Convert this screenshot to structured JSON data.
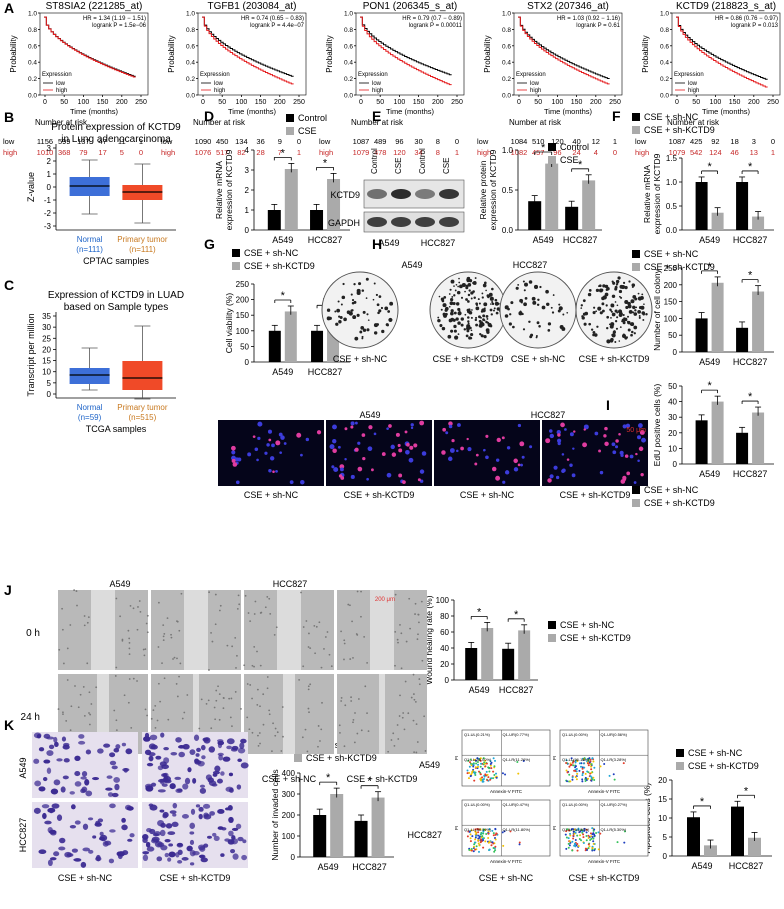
{
  "panel_letters": [
    "A",
    "B",
    "C",
    "D",
    "E",
    "F",
    "G",
    "H",
    "I",
    "J",
    "K",
    "L"
  ],
  "colors": {
    "low": "#000000",
    "high": "#e41a1c",
    "control": "#000000",
    "cse": "#aaaaaa",
    "sh_nc": "#000000",
    "sh_kctd9": "#aaaaaa",
    "box_normal": "#3d6fd8",
    "box_tumor": "#f04a28",
    "high_text": "#c62828",
    "normal_text": "#1e64c8",
    "tumor_text": "#c8781e"
  },
  "km": [
    {
      "title": "ST8SIA2 (221285_at)",
      "hr": "HR = 1.34 (1.19 − 1.51)",
      "logrank": "logrank P = 1.5e−06",
      "low": [
        "1156",
        "599",
        "137",
        "47",
        "11",
        "1"
      ],
      "high": [
        "1010",
        "368",
        "79",
        "17",
        "5",
        "0"
      ],
      "y_ticks": [
        "0.0",
        "0.2",
        "0.4",
        "0.6",
        "0.8",
        "1.0"
      ],
      "x_ticks": [
        "0",
        "50",
        "100",
        "150",
        "200",
        "250"
      ]
    },
    {
      "title": "TGFB1 (203084_at)",
      "hr": "HR = 0.74 (0.65 − 0.83)",
      "logrank": "logrank P = 4.4e−07",
      "low": [
        "1090",
        "450",
        "134",
        "36",
        "9",
        "0"
      ],
      "high": [
        "1076",
        "517",
        "82",
        "28",
        "7",
        "1"
      ],
      "y_ticks": [
        "0.0",
        "0.2",
        "0.4",
        "0.6",
        "0.8",
        "1.0"
      ],
      "x_ticks": [
        "0",
        "50",
        "100",
        "150",
        "200",
        "250"
      ]
    },
    {
      "title": "PON1 (206345_s_at)",
      "hr": "HR = 0.79 (0.7 − 0.89)",
      "logrank": "logrank P = 0.00011",
      "low": [
        "1087",
        "489",
        "96",
        "30",
        "8",
        "0"
      ],
      "high": [
        "1079",
        "478",
        "120",
        "34",
        "8",
        "1"
      ],
      "y_ticks": [
        "0.0",
        "0.2",
        "0.4",
        "0.6",
        "0.8",
        "1.0"
      ],
      "x_ticks": [
        "0",
        "50",
        "100",
        "150",
        "200",
        "250"
      ]
    },
    {
      "title": "STX2 (207346_at)",
      "hr": "HR = 1.03 (0.92 − 1.16)",
      "logrank": "logrank P = 0.61",
      "low": [
        "1084",
        "510",
        "120",
        "40",
        "12",
        "1"
      ],
      "high": [
        "1082",
        "457",
        "96",
        "24",
        "4",
        "0"
      ],
      "y_ticks": [
        "0.0",
        "0.2",
        "0.4",
        "0.6",
        "0.8",
        "1.0"
      ],
      "x_ticks": [
        "0",
        "50",
        "100",
        "150",
        "200",
        "250"
      ]
    },
    {
      "title": "KCTD9 (218823_s_at)",
      "hr": "HR = 0.86 (0.76 − 0.97)",
      "logrank": "logrank P = 0.013",
      "low": [
        "1087",
        "425",
        "92",
        "18",
        "3",
        "0"
      ],
      "high": [
        "1079",
        "542",
        "124",
        "46",
        "13",
        "1"
      ],
      "y_ticks": [
        "0.0",
        "0.2",
        "0.4",
        "0.6",
        "0.8",
        "1.0"
      ],
      "x_ticks": [
        "0",
        "50",
        "100",
        "150",
        "200",
        "250"
      ]
    }
  ],
  "km_text": {
    "ylabel": "Probability",
    "xlabel": "Time (months)",
    "legend_title": "Expression",
    "low": "low",
    "high": "high",
    "at_risk": "Number at risk"
  },
  "box_b": {
    "title": "Protein expression of KCTD9",
    "subtitle": "in Lung adenocarcinoma",
    "ylabel": "Z-value",
    "yticks": [
      "3",
      "2",
      "1",
      "0",
      "-1",
      "-2",
      "-3"
    ],
    "g1": "Normal",
    "g1n": "(n=111)",
    "g2": "Primary tumor",
    "g2n": "(n=111)",
    "xlabel": "CPTAC samples"
  },
  "box_c": {
    "title": "Expression of KCTD9 in LUAD",
    "subtitle": "based on Sample types",
    "ylabel": "Transcript per million",
    "yticks": [
      "35",
      "30",
      "25",
      "20",
      "15",
      "10",
      "5",
      "0"
    ],
    "g1": "Normal",
    "g1n": "(n=59)",
    "g2": "Primary tumor",
    "g2n": "(n=515)",
    "xlabel": "TCGA samples"
  },
  "groups": [
    "A549",
    "HCC827"
  ],
  "star": "*",
  "legend": {
    "control": "Control",
    "cse": "CSE",
    "sh_nc": "CSE + sh-NC",
    "sh_kctd9": "CSE + sh-KCTD9"
  },
  "chart_data": [
    {
      "panel": "D",
      "type": "bar",
      "categories": [
        "A549",
        "HCC827"
      ],
      "ylabel": "Relative mRNA expression of KCTD9",
      "ylim": [
        0,
        4
      ],
      "yticks": [
        "0",
        "1",
        "2",
        "3",
        "4"
      ],
      "series": [
        {
          "name": "Control",
          "values": [
            1.0,
            1.0
          ]
        },
        {
          "name": "CSE",
          "values": [
            3.05,
            2.55
          ]
        }
      ]
    },
    {
      "panel": "E",
      "type": "bar",
      "categories": [
        "A549",
        "HCC827"
      ],
      "ylabel": "Relative protein expression of KCTD9",
      "ylim": [
        0,
        1.0
      ],
      "yticks": [
        "0.0",
        "0.5",
        "1.0"
      ],
      "series": [
        {
          "name": "Control",
          "values": [
            0.36,
            0.29
          ]
        },
        {
          "name": "CSE",
          "values": [
            0.83,
            0.62
          ]
        }
      ]
    },
    {
      "panel": "F",
      "type": "bar",
      "categories": [
        "A549",
        "HCC827"
      ],
      "ylabel": "Relative mRNA expression of KCTD9",
      "ylim": [
        0,
        1.5
      ],
      "yticks": [
        "0.0",
        "0.5",
        "1.0",
        "1.5"
      ],
      "series": [
        {
          "name": "CSE + sh-NC",
          "values": [
            1.0,
            1.0
          ]
        },
        {
          "name": "CSE + sh-KCTD9",
          "values": [
            0.36,
            0.28
          ]
        }
      ]
    },
    {
      "panel": "G",
      "type": "bar",
      "categories": [
        "A549",
        "HCC827"
      ],
      "ylabel": "Cell viability (%)",
      "ylim": [
        0,
        250
      ],
      "yticks": [
        "0",
        "50",
        "100",
        "150",
        "200",
        "250"
      ],
      "series": [
        {
          "name": "CSE + sh-NC",
          "values": [
            100,
            100
          ]
        },
        {
          "name": "CSE + sh-KCTD9",
          "values": [
            162,
            145
          ]
        }
      ]
    },
    {
      "panel": "H",
      "type": "bar",
      "categories": [
        "A549",
        "HCC827"
      ],
      "ylabel": "Number of cell colony",
      "ylim": [
        0,
        250
      ],
      "yticks": [
        "0",
        "50",
        "100",
        "150",
        "200",
        "250"
      ],
      "series": [
        {
          "name": "CSE + sh-NC",
          "values": [
            100,
            72
          ]
        },
        {
          "name": "CSE + sh-KCTD9",
          "values": [
            206,
            180
          ]
        }
      ]
    },
    {
      "panel": "I",
      "type": "bar",
      "categories": [
        "A549",
        "HCC827"
      ],
      "ylabel": "EdU positive cells (%)",
      "ylim": [
        0,
        50
      ],
      "yticks": [
        "0",
        "10",
        "20",
        "30",
        "40",
        "50"
      ],
      "series": [
        {
          "name": "CSE + sh-NC",
          "values": [
            28,
            20
          ]
        },
        {
          "name": "CSE + sh-KCTD9",
          "values": [
            40,
            33
          ]
        }
      ]
    },
    {
      "panel": "J",
      "type": "bar",
      "categories": [
        "A549",
        "HCC827"
      ],
      "ylabel": "Wound healing rate (%)",
      "ylim": [
        0,
        100
      ],
      "yticks": [
        "0",
        "20",
        "40",
        "60",
        "80",
        "100"
      ],
      "series": [
        {
          "name": "CSE + sh-NC",
          "values": [
            40,
            39
          ]
        },
        {
          "name": "CSE + sh-KCTD9",
          "values": [
            65,
            62
          ]
        }
      ]
    },
    {
      "panel": "K",
      "type": "bar",
      "categories": [
        "A549",
        "HCC827"
      ],
      "ylabel": "Number of invaded cells",
      "ylim": [
        0,
        400
      ],
      "yticks": [
        "0",
        "100",
        "200",
        "300",
        "400"
      ],
      "series": [
        {
          "name": "CSE + sh-NC",
          "values": [
            200,
            172
          ]
        },
        {
          "name": "CSE + sh-KCTD9",
          "values": [
            300,
            283
          ]
        }
      ]
    },
    {
      "panel": "L",
      "type": "bar",
      "categories": [
        "A549",
        "HCC827"
      ],
      "ylabel": "Apoptotic cells (%)",
      "ylim": [
        0,
        20
      ],
      "yticks": [
        "0",
        "5",
        "10",
        "15",
        "20"
      ],
      "series": [
        {
          "name": "CSE + sh-NC",
          "values": [
            10.2,
            13.0
          ]
        },
        {
          "name": "CSE + sh-KCTD9",
          "values": [
            2.8,
            4.8
          ]
        }
      ]
    }
  ],
  "blot": {
    "lanes": [
      "Control",
      "CSE",
      "Control",
      "CSE"
    ],
    "rows": [
      "KCTD9",
      "GAPDH"
    ],
    "cells": [
      "A549",
      "HCC827"
    ]
  },
  "dishes": {
    "cell_a": "A549",
    "cell_b": "HCC827",
    "labels": [
      "CSE + sh-NC",
      "CSE + sh-KCTD9",
      "CSE + sh-NC",
      "CSE + sh-KCTD9"
    ]
  },
  "edu": {
    "cell_a": "A549",
    "cell_b": "HCC827",
    "scale": "50 μm",
    "labels": [
      "CSE + sh-NC",
      "CSE + sh-KCTD9",
      "CSE + sh-NC",
      "CSE + sh-KCTD9"
    ]
  },
  "wound": {
    "cell_a": "A549",
    "cell_b": "HCC827",
    "rows": [
      "0 h",
      "24 h"
    ],
    "scale": "200 μm",
    "labels": [
      "CSE + sh-NC",
      "CSE + sh-KCTD9",
      "CSE + sh-NC",
      "CSE + sh-KCTD9"
    ]
  },
  "invasion": {
    "rows": [
      "A549",
      "HCC827"
    ],
    "labels": [
      "CSE + sh-NC",
      "CSE + sh-KCTD9"
    ]
  },
  "flow": {
    "rows": [
      "A549",
      "HCC827"
    ],
    "labels": [
      "CSE + sh-NC",
      "CSE + sh-KCTD9"
    ],
    "xaxis": "Annexin-V FITC",
    "yaxis": "PI",
    "quads": [
      [
        "Q1-UL(0.21%)",
        "Q1-UR(0.77%)",
        "Q1-LL(88.00%)",
        "Q1-LR(11.26%)"
      ],
      [
        "Q1-UL(0.00%)",
        "Q1-UR(0.56%)",
        "Q1-LL(96.18%)",
        "Q1-LR(3.28%)"
      ],
      [
        "Q1-UL(0.00%)",
        "Q1-UR(0.47%)",
        "Q1-LL(88.09%)",
        "Q1-LR(11.80%)"
      ],
      [
        "Q1-UL(0.00%)",
        "Q1-UR(0.27%)",
        "Q1-LL(94.88%)",
        "Q1-LR(5.30%)"
      ]
    ]
  }
}
